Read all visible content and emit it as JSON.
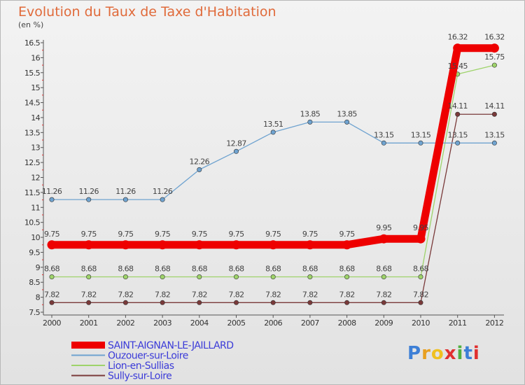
{
  "chart_data": {
    "type": "line",
    "title": "Evolution du Taux de Taxe d'Habitation",
    "subtitle": "(en %)",
    "x": [
      "2000",
      "2001",
      "2002",
      "2003",
      "2004",
      "2005",
      "2006",
      "2007",
      "2008",
      "2009",
      "2010",
      "2011",
      "2012"
    ],
    "ylim": [
      7.5,
      16.5
    ],
    "yticks": [
      "7.5",
      "8",
      "8.5",
      "9",
      "9.5",
      "10",
      "10.5",
      "11",
      "11.5",
      "12",
      "12.5",
      "13",
      "13.5",
      "14",
      "14.5",
      "15",
      "15.5",
      "16",
      "16.5"
    ],
    "grid": false,
    "legend_position": "bottom-left",
    "series": [
      {
        "name": "SAINT-AIGNAN-LE-JAILLARD",
        "color": "#ee0000",
        "values": [
          9.75,
          9.75,
          9.75,
          9.75,
          9.75,
          9.75,
          9.75,
          9.75,
          9.75,
          9.95,
          9.95,
          16.32,
          16.32
        ],
        "labels": [
          "9.75",
          "9.75",
          "9.75",
          "9.75",
          "9.75",
          "9.75",
          "9.75",
          "9.75",
          "9.75",
          "9.95",
          "9.95",
          "16.32",
          "16.32"
        ]
      },
      {
        "name": "Ouzouer-sur-Loire",
        "color": "#6fa3d0",
        "values": [
          11.26,
          11.26,
          11.26,
          11.26,
          12.26,
          12.87,
          13.51,
          13.85,
          13.85,
          13.15,
          13.15,
          13.15,
          13.15
        ],
        "labels": [
          "11.26",
          "11.26",
          "11.26",
          "11.26",
          "12.26",
          "12.87",
          "13.51",
          "13.85",
          "13.85",
          "13.15",
          "13.15",
          "13.15",
          "13.15"
        ]
      },
      {
        "name": "Lion-en-Sullias",
        "color": "#9ed36a",
        "values": [
          8.68,
          8.68,
          8.68,
          8.68,
          8.68,
          8.68,
          8.68,
          8.68,
          8.68,
          8.68,
          8.68,
          15.45,
          15.75
        ],
        "labels": [
          "8.68",
          "8.68",
          "8.68",
          "8.68",
          "8.68",
          "8.68",
          "8.68",
          "8.68",
          "8.68",
          "8.68",
          "8.68",
          "15.45",
          "15.75"
        ]
      },
      {
        "name": "Sully-sur-Loire",
        "color": "#7a3a3a",
        "values": [
          7.82,
          7.82,
          7.82,
          7.82,
          7.82,
          7.82,
          7.82,
          7.82,
          7.82,
          7.82,
          7.82,
          14.11,
          14.11
        ],
        "labels": [
          "7.82",
          "7.82",
          "7.82",
          "7.82",
          "7.82",
          "7.82",
          "7.82",
          "7.82",
          "7.82",
          "7.82",
          "7.82",
          "14.11",
          "14.11"
        ]
      }
    ]
  },
  "logo": {
    "text": "Proxiti",
    "letters": [
      "P",
      "r",
      "o",
      "x",
      "i",
      "t",
      "i"
    ],
    "colors": [
      "#3d7fd6",
      "#e8a020",
      "#f0c020",
      "#e03030",
      "#50b040",
      "#3d7fd6",
      "#e03030"
    ]
  }
}
